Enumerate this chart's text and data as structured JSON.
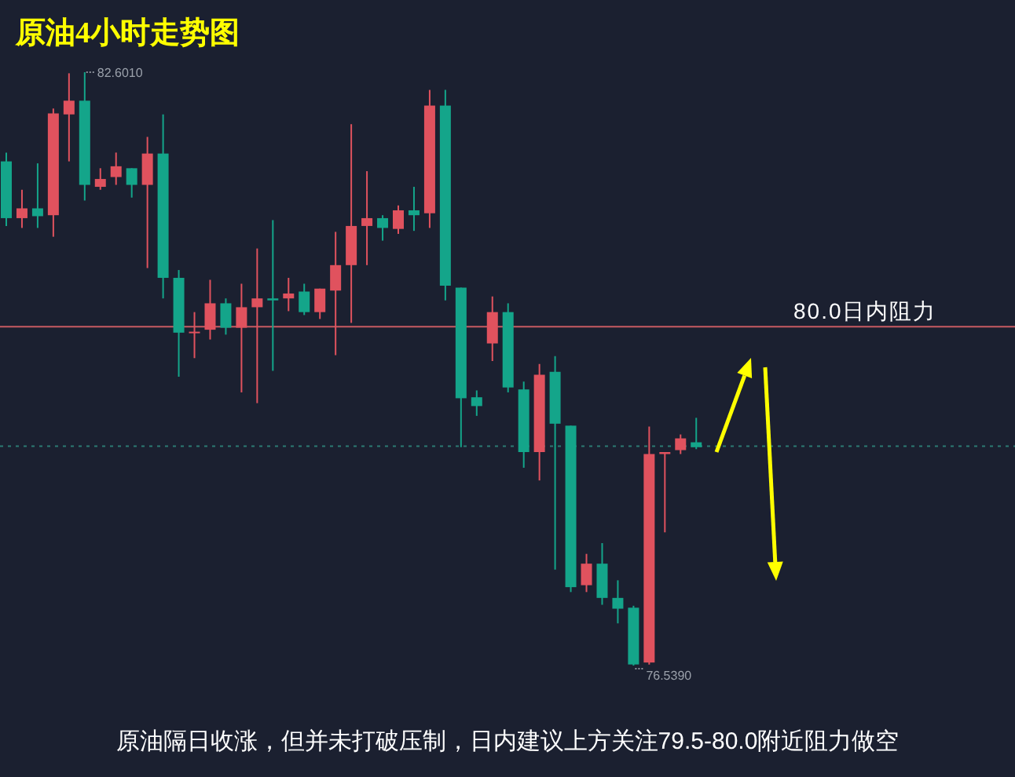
{
  "chart_data": {
    "type": "candlestick",
    "title": "原油4小时走势图",
    "categories": [
      null,
      null,
      null,
      null,
      null,
      null,
      null,
      null,
      null,
      null,
      null,
      null,
      null,
      null,
      null,
      null,
      null,
      null,
      null,
      null,
      null,
      null,
      null,
      null,
      null,
      null,
      null,
      null,
      null,
      null,
      null,
      null,
      null,
      null,
      null,
      null,
      null,
      null,
      null,
      null,
      null,
      null,
      null,
      null,
      null
    ],
    "ohlc": [
      [
        81.69,
        81.78,
        81.03,
        81.11
      ],
      [
        81.11,
        81.4,
        81.01,
        81.21
      ],
      [
        81.21,
        81.67,
        81.01,
        81.13
      ],
      [
        81.14,
        82.23,
        80.92,
        82.18
      ],
      [
        82.17,
        82.59,
        81.69,
        82.31
      ],
      [
        82.31,
        82.601,
        81.29,
        81.45
      ],
      [
        81.43,
        81.62,
        81.4,
        81.51
      ],
      [
        81.53,
        81.78,
        81.45,
        81.64
      ],
      [
        81.62,
        81.62,
        81.32,
        81.45
      ],
      [
        81.45,
        81.94,
        80.6,
        81.77
      ],
      [
        81.77,
        82.17,
        80.29,
        80.5
      ],
      [
        80.5,
        80.58,
        79.49,
        79.94
      ],
      [
        79.94,
        80.15,
        79.68,
        79.95
      ],
      [
        79.97,
        80.48,
        79.87,
        80.24
      ],
      [
        80.24,
        80.29,
        79.92,
        79.99
      ],
      [
        79.99,
        80.44,
        79.33,
        80.2
      ],
      [
        80.2,
        80.8,
        79.22,
        80.29
      ],
      [
        80.29,
        81.09,
        79.55,
        80.27
      ],
      [
        80.29,
        80.5,
        80.16,
        80.34
      ],
      [
        80.36,
        80.44,
        80.12,
        80.15
      ],
      [
        80.15,
        80.39,
        80.08,
        80.39
      ],
      [
        80.37,
        80.97,
        79.71,
        80.63
      ],
      [
        80.63,
        82.07,
        80.04,
        81.03
      ],
      [
        81.03,
        81.59,
        80.63,
        81.11
      ],
      [
        81.11,
        81.14,
        80.88,
        81.01
      ],
      [
        81.0,
        81.24,
        80.95,
        81.19
      ],
      [
        81.19,
        81.43,
        80.98,
        81.14
      ],
      [
        81.16,
        82.42,
        81.01,
        82.26
      ],
      [
        82.26,
        82.42,
        80.27,
        80.42
      ],
      [
        80.4,
        80.4,
        78.77,
        79.27
      ],
      [
        79.28,
        79.35,
        79.09,
        79.19
      ],
      [
        79.83,
        80.31,
        79.65,
        80.15
      ],
      [
        80.15,
        80.24,
        79.33,
        79.38
      ],
      [
        79.36,
        79.44,
        78.56,
        78.72
      ],
      [
        78.72,
        79.62,
        78.43,
        79.51
      ],
      [
        79.54,
        79.7,
        77.52,
        79.01
      ],
      [
        78.99,
        78.99,
        77.29,
        77.34
      ],
      [
        77.36,
        77.68,
        77.29,
        77.58
      ],
      [
        77.58,
        77.79,
        77.16,
        77.23
      ],
      [
        77.23,
        77.41,
        76.97,
        77.12
      ],
      [
        77.13,
        77.15,
        76.539,
        76.55
      ],
      [
        76.57,
        78.98,
        76.55,
        78.7
      ],
      [
        78.7,
        78.72,
        77.9,
        78.72
      ],
      [
        78.74,
        78.9,
        78.7,
        78.86
      ],
      [
        78.82,
        79.07,
        78.75,
        78.77
      ]
    ],
    "colors": [
      "#14a58a",
      "#e0525e",
      "#14a58a",
      "#e0525e",
      "#e0525e",
      "#14a58a",
      "#e0525e",
      "#e0525e",
      "#14a58a",
      "#e0525e",
      "#14a58a",
      "#14a58a",
      "#e0525e",
      "#e0525e",
      "#14a58a",
      "#e0525e",
      "#e0525e",
      "#14a58a",
      "#e0525e",
      "#14a58a",
      "#e0525e",
      "#e0525e",
      "#e0525e",
      "#e0525e",
      "#14a58a",
      "#e0525e",
      "#14a58a",
      "#e0525e",
      "#14a58a",
      "#14a58a",
      "#14a58a",
      "#e0525e",
      "#14a58a",
      "#14a58a",
      "#e0525e",
      "#14a58a",
      "#14a58a",
      "#e0525e",
      "#14a58a",
      "#14a58a",
      "#14a58a",
      "#e0525e",
      "#e0525e",
      "#e0525e",
      "#14a58a"
    ],
    "ref_lines": [
      {
        "axis": "y",
        "value": 80.0,
        "label": "80.0日内阻力",
        "color": "#c85a62"
      },
      {
        "axis": "y",
        "value": 78.78,
        "color": "#2c7a72",
        "line_style": "dotted"
      }
    ],
    "annotations": [
      "82.6010",
      "76.5390",
      "原油隔日收涨，但并未打破压制，日内建议上方关注79.5-80.0附近阻力做空"
    ]
  }
}
